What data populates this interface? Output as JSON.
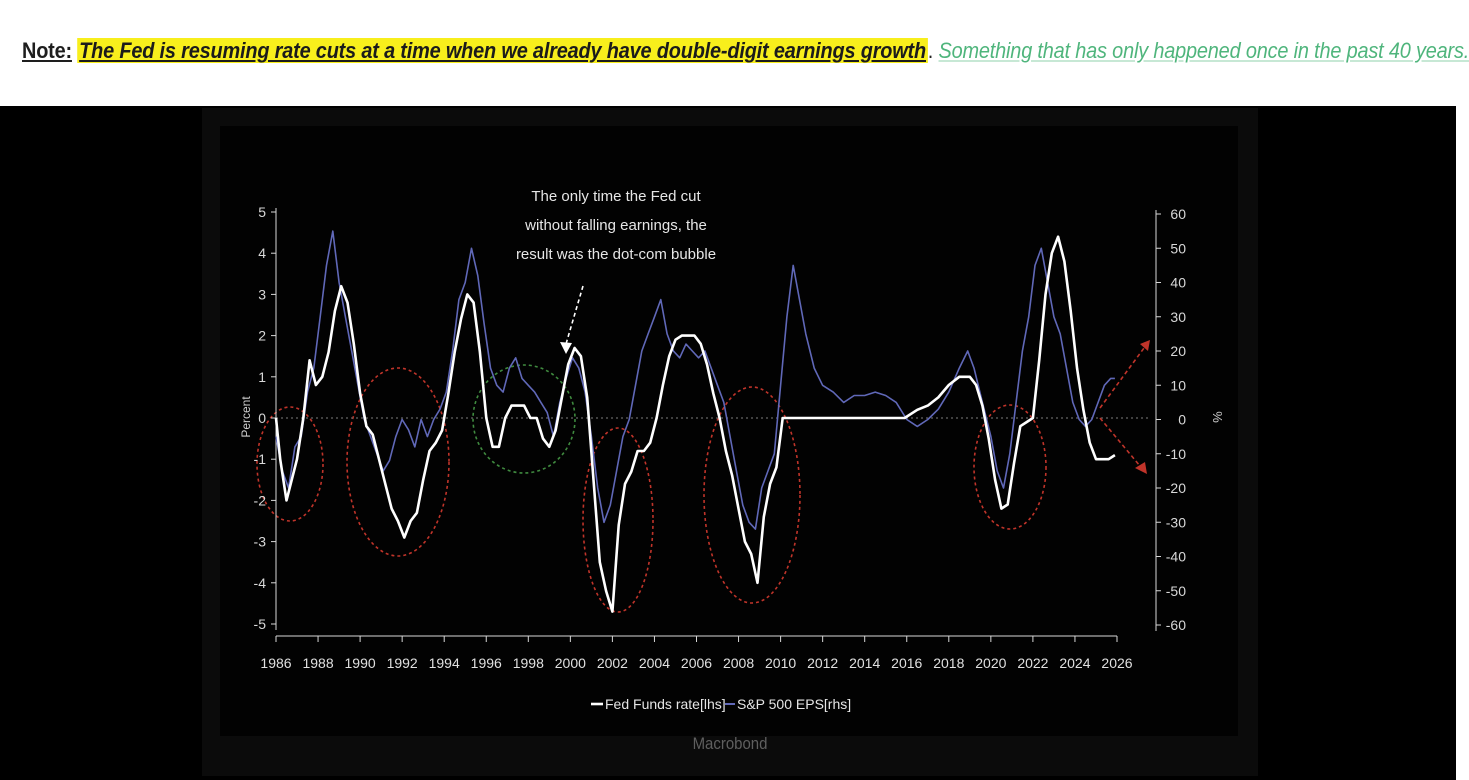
{
  "note": {
    "label": "Note:",
    "highlight": "The Fed is resuming rate cuts at a time when we already have double-digit earnings growth",
    "period": ".",
    "green": "Something that has only happened once in the past 40 years."
  },
  "source": "Macrobond",
  "colors": {
    "fed_line": "#ffffff",
    "eps_line": "#6068b8",
    "red_circles": "#c0342a",
    "green_circle": "#3f8a3f",
    "zero_line": "#666666",
    "arrows": "#c0342a",
    "annotation_arrow": "#ffffff",
    "highlight": "#f8ef1c",
    "note_green": "#4fb57c"
  },
  "chart_data": {
    "type": "line",
    "xlim": [
      1986,
      2026
    ],
    "x_ticks": [
      "1986",
      "1988",
      "1990",
      "1992",
      "1994",
      "1996",
      "1998",
      "2000",
      "2002",
      "2004",
      "2006",
      "2008",
      "2010",
      "2012",
      "2014",
      "2016",
      "2018",
      "2020",
      "2022",
      "2024",
      "2026"
    ],
    "y_left": {
      "label": "Percent",
      "lim": [
        -5,
        5
      ],
      "ticks": [
        "5",
        "4",
        "3",
        "2",
        "1",
        "0",
        "-1",
        "-2",
        "-3",
        "-4",
        "-5"
      ]
    },
    "y_right": {
      "label": "%",
      "lim": [
        -60,
        60
      ],
      "ticks": [
        "60",
        "50",
        "40",
        "30",
        "20",
        "10",
        "0",
        "-10",
        "-20",
        "-30",
        "-40",
        "-50",
        "-60"
      ]
    },
    "annotation": "The only time the Fed cut without falling earnings, the result was the dot-com bubble",
    "legend": [
      "Fed Funds rate[lhs]",
      "S&P 500 EPS[rhs]"
    ],
    "series": [
      {
        "name": "Fed Funds rate[lhs]",
        "axis": "left",
        "color": "#ffffff",
        "x": [
          1986.0,
          1986.2,
          1986.5,
          1986.7,
          1987.0,
          1987.3,
          1987.6,
          1987.9,
          1988.2,
          1988.5,
          1988.8,
          1989.1,
          1989.4,
          1989.7,
          1990.0,
          1990.3,
          1990.6,
          1990.9,
          1991.2,
          1991.5,
          1991.8,
          1992.1,
          1992.4,
          1992.7,
          1993.0,
          1993.3,
          1993.6,
          1993.9,
          1994.2,
          1994.5,
          1994.8,
          1995.1,
          1995.4,
          1995.7,
          1996.0,
          1996.3,
          1996.6,
          1996.9,
          1997.2,
          1997.5,
          1997.8,
          1998.1,
          1998.4,
          1998.7,
          1999.0,
          1999.3,
          1999.6,
          1999.9,
          2000.2,
          2000.5,
          2000.8,
          2001.1,
          2001.4,
          2001.7,
          2002.0,
          2002.3,
          2002.6,
          2002.9,
          2003.2,
          2003.5,
          2003.8,
          2004.1,
          2004.4,
          2004.7,
          2005.0,
          2005.3,
          2005.6,
          2005.9,
          2006.2,
          2006.5,
          2006.8,
          2007.1,
          2007.4,
          2007.7,
          2008.0,
          2008.3,
          2008.6,
          2008.9,
          2009.2,
          2009.5,
          2009.8,
          2010.1,
          2010.5,
          2011.0,
          2012.0,
          2013.0,
          2014.0,
          2015.0,
          2015.9,
          2016.5,
          2017.0,
          2017.5,
          2018.0,
          2018.5,
          2019.0,
          2019.3,
          2019.6,
          2019.9,
          2020.2,
          2020.5,
          2020.8,
          2021.1,
          2021.4,
          2021.7,
          2022.0,
          2022.3,
          2022.6,
          2022.9,
          2023.2,
          2023.5,
          2023.8,
          2024.1,
          2024.4,
          2024.7,
          2025.0,
          2025.3,
          2025.6,
          2025.9
        ],
        "y": [
          0.0,
          -1.0,
          -2.0,
          -1.6,
          -1.0,
          0.0,
          1.4,
          0.8,
          1.0,
          1.6,
          2.6,
          3.2,
          2.8,
          1.8,
          0.6,
          -0.2,
          -0.4,
          -1.0,
          -1.6,
          -2.2,
          -2.5,
          -2.9,
          -2.5,
          -2.3,
          -1.5,
          -0.8,
          -0.6,
          -0.3,
          0.6,
          1.6,
          2.4,
          3.0,
          2.8,
          1.6,
          0.0,
          -0.7,
          -0.7,
          0.0,
          0.3,
          0.3,
          0.3,
          0.0,
          0.0,
          -0.5,
          -0.7,
          -0.3,
          0.5,
          1.3,
          1.7,
          1.5,
          0.5,
          -1.5,
          -3.5,
          -4.2,
          -4.7,
          -2.6,
          -1.6,
          -1.3,
          -0.8,
          -0.8,
          -0.6,
          0.0,
          0.8,
          1.5,
          1.9,
          2.0,
          2.0,
          2.0,
          1.8,
          1.3,
          0.6,
          0.0,
          -0.8,
          -1.4,
          -2.2,
          -3.0,
          -3.3,
          -4.0,
          -2.4,
          -1.6,
          -1.2,
          0.0,
          0.0,
          0.0,
          0.0,
          0.0,
          0.0,
          0.0,
          0.0,
          0.2,
          0.3,
          0.5,
          0.8,
          1.0,
          1.0,
          0.8,
          0.3,
          -0.5,
          -1.5,
          -2.2,
          -2.1,
          -1.1,
          -0.2,
          -0.1,
          0.0,
          1.4,
          3.0,
          4.0,
          4.4,
          3.8,
          2.6,
          1.2,
          0.2,
          -0.6,
          -1.0,
          -1.0,
          -1.0,
          -0.9
        ]
      },
      {
        "name": "S&P 500 EPS[rhs]",
        "axis": "right",
        "color": "#6068b8",
        "x": [
          1986.0,
          1986.3,
          1986.6,
          1986.9,
          1987.2,
          1987.5,
          1987.8,
          1988.1,
          1988.4,
          1988.7,
          1989.0,
          1989.3,
          1989.6,
          1989.9,
          1990.2,
          1990.5,
          1990.8,
          1991.1,
          1991.4,
          1991.7,
          1992.0,
          1992.3,
          1992.6,
          1992.9,
          1993.2,
          1993.5,
          1993.8,
          1994.1,
          1994.4,
          1994.7,
          1995.0,
          1995.3,
          1995.6,
          1995.9,
          1996.2,
          1996.5,
          1996.8,
          1997.1,
          1997.4,
          1997.7,
          1998.0,
          1998.3,
          1998.6,
          1998.9,
          1999.2,
          1999.5,
          1999.8,
          2000.1,
          2000.4,
          2000.7,
          2001.0,
          2001.3,
          2001.6,
          2001.9,
          2002.2,
          2002.5,
          2002.8,
          2003.1,
          2003.4,
          2003.7,
          2004.0,
          2004.3,
          2004.6,
          2004.9,
          2005.2,
          2005.5,
          2005.8,
          2006.1,
          2006.4,
          2006.7,
          2007.0,
          2007.3,
          2007.6,
          2007.9,
          2008.2,
          2008.5,
          2008.8,
          2009.1,
          2009.4,
          2009.7,
          2010.0,
          2010.3,
          2010.6,
          2010.9,
          2011.2,
          2011.6,
          2012.0,
          2012.5,
          2013.0,
          2013.5,
          2014.0,
          2014.5,
          2015.0,
          2015.5,
          2016.0,
          2016.5,
          2017.0,
          2017.5,
          2018.0,
          2018.5,
          2018.9,
          2019.2,
          2019.6,
          2020.0,
          2020.3,
          2020.6,
          2020.9,
          2021.2,
          2021.5,
          2021.8,
          2022.1,
          2022.4,
          2022.7,
          2023.0,
          2023.3,
          2023.6,
          2023.9,
          2024.2,
          2024.5,
          2024.8,
          2025.1,
          2025.4,
          2025.7,
          2025.9
        ],
        "y": [
          -5,
          -15,
          -20,
          -8,
          -5,
          8,
          15,
          30,
          45,
          55,
          40,
          30,
          20,
          10,
          0,
          -5,
          -10,
          -15,
          -12,
          -5,
          0,
          -3,
          -8,
          0,
          -5,
          0,
          3,
          8,
          20,
          35,
          40,
          50,
          42,
          28,
          15,
          10,
          8,
          15,
          18,
          12,
          10,
          8,
          5,
          2,
          -5,
          5,
          12,
          18,
          15,
          8,
          -5,
          -20,
          -30,
          -25,
          -15,
          -5,
          0,
          10,
          20,
          25,
          30,
          35,
          25,
          20,
          18,
          22,
          20,
          18,
          20,
          15,
          10,
          5,
          -5,
          -15,
          -25,
          -30,
          -32,
          -20,
          -15,
          -10,
          10,
          30,
          45,
          35,
          25,
          15,
          10,
          8,
          5,
          7,
          7,
          8,
          7,
          5,
          0,
          -2,
          0,
          3,
          8,
          15,
          20,
          15,
          5,
          -5,
          -15,
          -20,
          -10,
          5,
          20,
          30,
          45,
          50,
          40,
          30,
          25,
          15,
          5,
          0,
          -2,
          0,
          5,
          10,
          12,
          12
        ]
      }
    ]
  }
}
